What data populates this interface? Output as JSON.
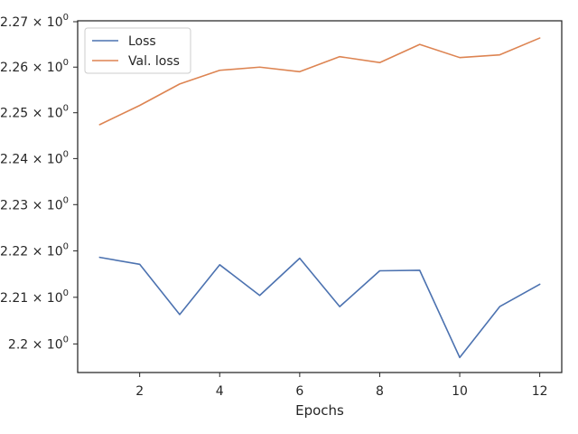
{
  "chart_data": {
    "type": "line",
    "title": "",
    "xlabel": "Epochs",
    "ylabel": "",
    "x": [
      1,
      2,
      3,
      4,
      5,
      6,
      7,
      8,
      9,
      10,
      11,
      12
    ],
    "xlim": [
      0.45,
      12.55
    ],
    "ylim": [
      2.1939,
      2.2702
    ],
    "y_scale": "log",
    "x_ticks": [
      2,
      4,
      6,
      8,
      10,
      12
    ],
    "x_tick_labels": [
      "2",
      "4",
      "6",
      "8",
      "10",
      "12"
    ],
    "y_ticks": [
      2.2,
      2.21,
      2.22,
      2.23,
      2.24,
      2.25,
      2.26,
      2.27
    ],
    "y_tick_mantissas": [
      "2.2",
      "2.21",
      "2.22",
      "2.23",
      "2.24",
      "2.25",
      "2.26",
      "2.27"
    ],
    "y_tick_multiplier": "× 10",
    "y_tick_exponent": "0",
    "grid": false,
    "legend_position": "top-left",
    "series": [
      {
        "name": "Loss",
        "color": "#4c72b0",
        "values": [
          2.2186,
          2.2171,
          2.2063,
          2.217,
          2.2104,
          2.2184,
          2.208,
          2.2157,
          2.2158,
          2.1971,
          2.208,
          2.2128
        ]
      },
      {
        "name": "Val. loss",
        "color": "#dd8452",
        "values": [
          2.2474,
          2.2516,
          2.2563,
          2.2593,
          2.26,
          2.259,
          2.2623,
          2.261,
          2.265,
          2.2621,
          2.2627,
          2.2664
        ]
      }
    ]
  }
}
